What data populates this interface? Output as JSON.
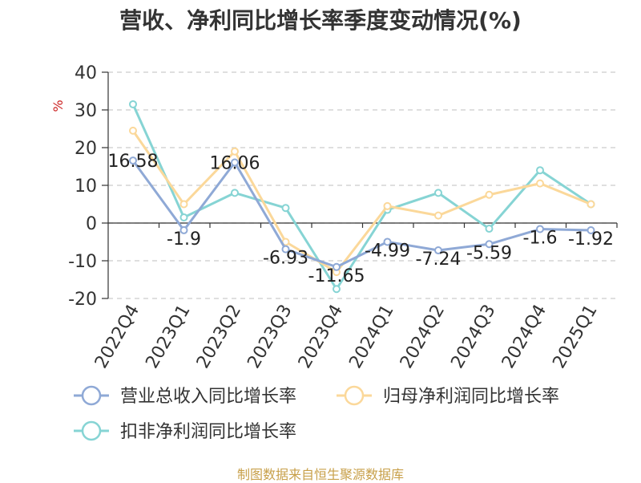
{
  "title": "营收、净利同比增长率季度变动情况(%)",
  "source": "制图数据来自恒生聚源数据库",
  "chart_data": {
    "type": "line",
    "title": "营收、净利同比增长率季度变动情况(%)",
    "ylabel": "%",
    "ylim": [
      -20,
      40
    ],
    "yticks": [
      40,
      30,
      20,
      10,
      0,
      -10,
      -20
    ],
    "grid": true,
    "legend_position": "bottom",
    "categories": [
      "2022Q4",
      "2023Q1",
      "2023Q2",
      "2023Q3",
      "2023Q4",
      "2024Q1",
      "2024Q2",
      "2024Q3",
      "2024Q4",
      "2025Q1"
    ],
    "series": [
      {
        "name": "营业总收入同比增长率",
        "color": "#8fa9d6",
        "values": [
          16.58,
          -1.9,
          16.06,
          -6.93,
          -11.65,
          -4.99,
          -7.24,
          -5.59,
          -1.6,
          -1.92
        ],
        "labels": [
          "16.58",
          "-1.9",
          "16.06",
          "-6.93",
          "-11.65",
          "-4.99",
          "-7.24",
          "-5.59",
          "-1.6",
          "-1.92"
        ]
      },
      {
        "name": "归母净利润同比增长率",
        "color": "#fbd89a",
        "values": [
          24.5,
          5.0,
          19.0,
          -5.0,
          -13.0,
          4.5,
          2.0,
          7.5,
          10.5,
          5.0
        ]
      },
      {
        "name": "扣非净利润同比增长率",
        "color": "#86d4d4",
        "values": [
          31.5,
          1.5,
          8.0,
          4.0,
          -17.5,
          3.5,
          8.0,
          -1.5,
          14.0,
          5.0
        ]
      }
    ]
  }
}
